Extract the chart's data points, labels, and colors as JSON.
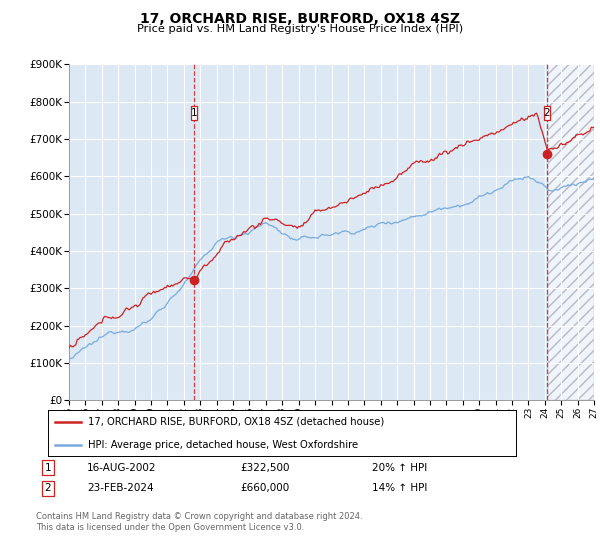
{
  "title": "17, ORCHARD RISE, BURFORD, OX18 4SZ",
  "subtitle": "Price paid vs. HM Land Registry's House Price Index (HPI)",
  "legend_line1": "17, ORCHARD RISE, BURFORD, OX18 4SZ (detached house)",
  "legend_line2": "HPI: Average price, detached house, West Oxfordshire",
  "transaction1_date": "16-AUG-2002",
  "transaction1_price": "£322,500",
  "transaction1_hpi": "20% ↑ HPI",
  "transaction1_year": 2002.625,
  "transaction1_value": 322500,
  "transaction2_date": "23-FEB-2024",
  "transaction2_price": "£660,000",
  "transaction2_hpi": "14% ↑ HPI",
  "transaction2_year": 2024.13,
  "transaction2_value": 660000,
  "hpi_color": "#7aaadd",
  "price_color": "#cc2222",
  "marker_dot_color": "#cc2222",
  "ylim": [
    0,
    900000
  ],
  "xlim_start": 1995,
  "xlim_end": 2027,
  "plot_bg_color": "#dce9f5",
  "grid_color": "#ffffff",
  "future_start": 2024.13,
  "footer": "Contains HM Land Registry data © Crown copyright and database right 2024.\nThis data is licensed under the Open Government Licence v3.0."
}
